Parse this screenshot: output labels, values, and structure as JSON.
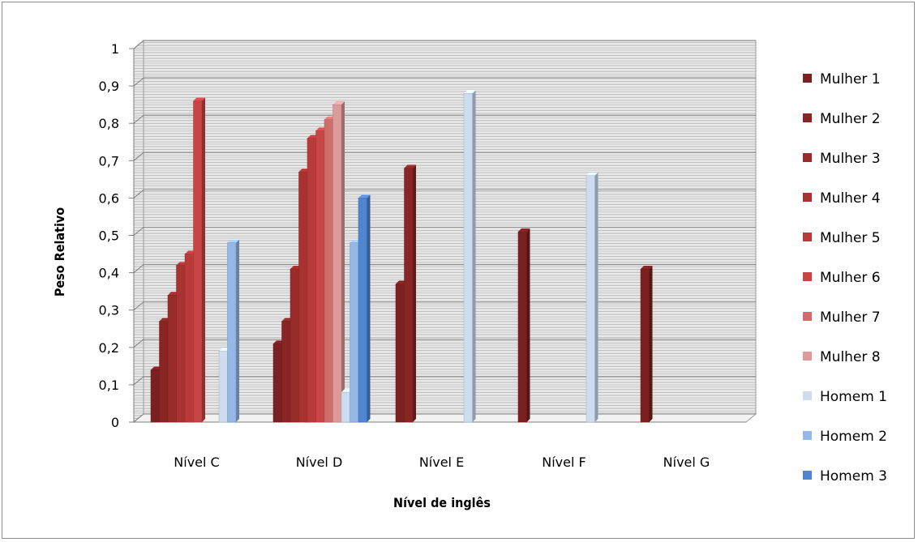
{
  "chart_data": {
    "type": "bar",
    "categories": [
      "Nível C",
      "Nível D",
      "Nível E",
      "Nível F",
      "Nível G"
    ],
    "ylabel": "Peso Relativo",
    "xlabel": "Nível de inglês",
    "ylim": [
      0,
      1
    ],
    "yticks": [
      "0",
      "0,1",
      "0,2",
      "0,3",
      "0,4",
      "0,5",
      "0,6",
      "0,7",
      "0,8",
      "0,9",
      "1"
    ],
    "grid": true,
    "legend_position": "right",
    "series": [
      {
        "name": "Mulher 1",
        "color": "#7b2020",
        "values": [
          0.14,
          0.21,
          0.37,
          0.51,
          0.41
        ]
      },
      {
        "name": "Mulher 2",
        "color": "#8a2525",
        "values": [
          0.27,
          0.27,
          0.68,
          null,
          null
        ]
      },
      {
        "name": "Mulher 3",
        "color": "#9a2b2b",
        "values": [
          0.34,
          0.41,
          null,
          null,
          null
        ]
      },
      {
        "name": "Mulher 4",
        "color": "#a83232",
        "values": [
          0.42,
          0.67,
          null,
          null,
          null
        ]
      },
      {
        "name": "Mulher 5",
        "color": "#b83a3a",
        "values": [
          0.45,
          0.76,
          null,
          null,
          null
        ]
      },
      {
        "name": "Mulher 6",
        "color": "#c84545",
        "values": [
          0.86,
          0.78,
          null,
          null,
          null
        ]
      },
      {
        "name": "Mulher 7",
        "color": "#cf6d6d",
        "values": [
          null,
          0.81,
          null,
          null,
          null
        ]
      },
      {
        "name": "Mulher 8",
        "color": "#dc9a9a",
        "values": [
          null,
          0.85,
          null,
          null,
          null
        ]
      },
      {
        "name": "Homem 1",
        "color": "#cddcf0",
        "values": [
          0.19,
          0.08,
          0.88,
          0.66,
          null
        ]
      },
      {
        "name": "Homem 2",
        "color": "#95b8e6",
        "values": [
          0.48,
          0.48,
          null,
          null,
          null
        ]
      },
      {
        "name": "Homem 3",
        "color": "#4f86cf",
        "values": [
          null,
          0.6,
          null,
          null,
          null
        ]
      }
    ]
  }
}
